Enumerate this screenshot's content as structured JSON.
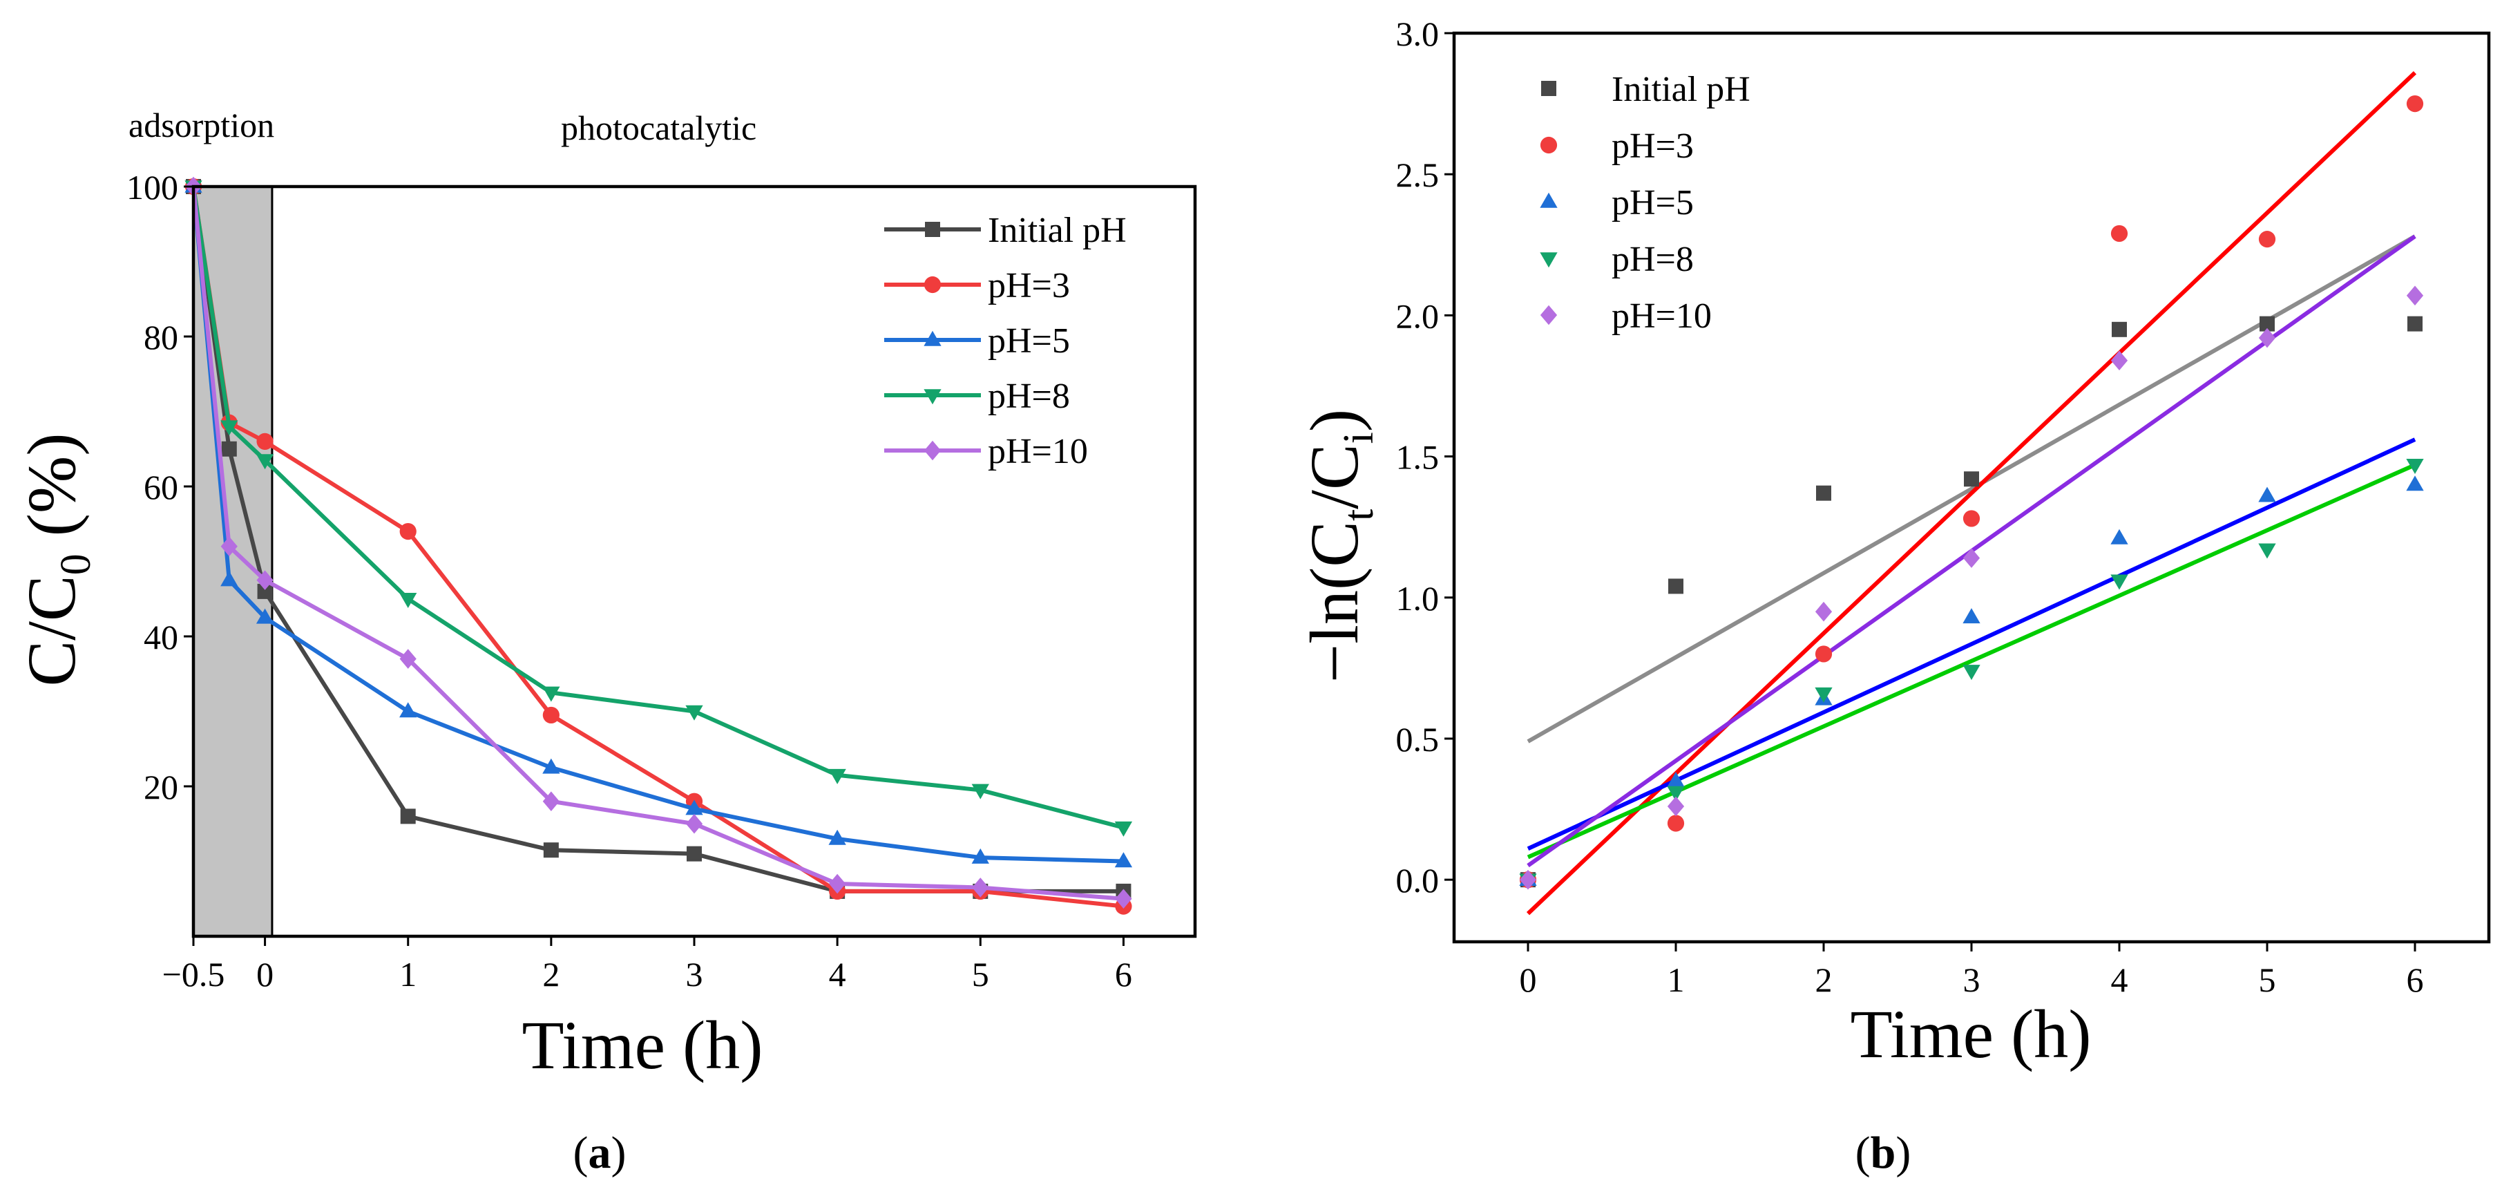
{
  "chart_data": [
    {
      "type": "line",
      "panel_label": "a",
      "xlabel": "Time (h)",
      "ylabel_main": "C/C",
      "ylabel_sub": "0",
      "ylabel_unit": " (%)",
      "xlim": [
        -0.5,
        6.5
      ],
      "ylim": [
        0,
        100
      ],
      "xticks": [
        -0.5,
        0,
        1,
        2,
        3,
        4,
        5,
        6
      ],
      "xtick_labels": [
        "−0.5",
        "0",
        "1",
        "2",
        "3",
        "4",
        "5",
        "6"
      ],
      "yticks": [
        20,
        40,
        60,
        80,
        100
      ],
      "ytick_labels": [
        "20",
        "40",
        "60",
        "80",
        "100"
      ],
      "region_labels": {
        "adsorption": "adsorption",
        "photocatalytic": "photocatalytic"
      },
      "shaded_region": [
        -0.5,
        0.05
      ],
      "legend_position": "top-right",
      "series": [
        {
          "name": "Initial pH",
          "color": "#474747",
          "marker": "square",
          "x": [
            -0.5,
            -0.25,
            0,
            1,
            2,
            3,
            4,
            5,
            6
          ],
          "y": [
            100,
            65,
            46,
            16,
            11.5,
            11,
            6,
            6,
            6
          ]
        },
        {
          "name": "pH=3",
          "color": "#f03c3c",
          "marker": "circle",
          "x": [
            -0.5,
            -0.25,
            0,
            1,
            2,
            3,
            4,
            5,
            6
          ],
          "y": [
            100,
            68.5,
            66,
            54,
            29.5,
            18,
            6,
            6,
            4
          ]
        },
        {
          "name": "pH=5",
          "color": "#1f6fd6",
          "marker": "triangle-up",
          "x": [
            -0.5,
            -0.25,
            0,
            1,
            2,
            3,
            4,
            5,
            6
          ],
          "y": [
            100,
            47.5,
            42.5,
            30,
            22.5,
            17,
            13,
            10.5,
            10
          ]
        },
        {
          "name": "pH=8",
          "color": "#14a36a",
          "marker": "triangle-down",
          "x": [
            -0.5,
            -0.25,
            0,
            1,
            2,
            3,
            4,
            5,
            6
          ],
          "y": [
            100,
            68,
            63.5,
            45,
            32.5,
            30,
            21.5,
            19.5,
            14.5
          ]
        },
        {
          "name": "pH=10",
          "color": "#b56ee0",
          "marker": "diamond",
          "x": [
            -0.5,
            -0.25,
            0,
            1,
            2,
            3,
            4,
            5,
            6
          ],
          "y": [
            100,
            52,
            47.5,
            37,
            18,
            15,
            7,
            6.5,
            5
          ]
        }
      ]
    },
    {
      "type": "scatter",
      "panel_label": "b",
      "xlabel": "Time (h)",
      "ylabel_prefix": "−ln(C",
      "ylabel_sub1": "t",
      "ylabel_mid": "/C",
      "ylabel_sub2": "i",
      "ylabel_suffix": ")",
      "xlim": [
        -0.5,
        6.5
      ],
      "ylim": [
        -0.22,
        3.0
      ],
      "xticks": [
        0,
        1,
        2,
        3,
        4,
        5,
        6
      ],
      "xtick_labels": [
        "0",
        "1",
        "2",
        "3",
        "4",
        "5",
        "6"
      ],
      "yticks": [
        0,
        0.5,
        1.0,
        1.5,
        2.0,
        2.5,
        3.0
      ],
      "ytick_labels": [
        "0.0",
        "0.5",
        "1.0",
        "1.5",
        "2.0",
        "2.5",
        "3.0"
      ],
      "legend_position": "top-left",
      "series": [
        {
          "name": "Initial pH",
          "color": "#474747",
          "marker": "square",
          "fit_color": "#8c8c8c",
          "x": [
            0,
            1,
            2,
            3,
            4,
            5,
            6
          ],
          "y": [
            0,
            1.04,
            1.37,
            1.42,
            1.95,
            1.97,
            1.97
          ],
          "fit": [
            0.49,
            2.28
          ]
        },
        {
          "name": "pH=3",
          "color": "#f03c3c",
          "marker": "circle",
          "fit_color": "#ff0000",
          "x": [
            0,
            1,
            2,
            3,
            4,
            5,
            6
          ],
          "y": [
            0,
            0.2,
            0.8,
            1.28,
            2.29,
            2.27,
            2.75
          ],
          "fit": [
            -0.12,
            2.86
          ]
        },
        {
          "name": "pH=5",
          "color": "#1f6fd6",
          "marker": "triangle-up",
          "fit_color": "#0000ff",
          "x": [
            0,
            1,
            2,
            3,
            4,
            5,
            6
          ],
          "y": [
            0,
            0.35,
            0.64,
            0.93,
            1.21,
            1.36,
            1.4
          ],
          "fit": [
            0.11,
            1.56
          ]
        },
        {
          "name": "pH=8",
          "color": "#14a36a",
          "marker": "triangle-down",
          "fit_color": "#00cc00",
          "x": [
            0,
            1,
            2,
            3,
            4,
            5,
            6
          ],
          "y": [
            0,
            0.31,
            0.66,
            0.74,
            1.06,
            1.17,
            1.47
          ],
          "fit": [
            0.08,
            1.47
          ]
        },
        {
          "name": "pH=10",
          "color": "#b56ee0",
          "marker": "diamond",
          "fit_color": "#8a2be2",
          "x": [
            0,
            1,
            2,
            3,
            4,
            5,
            6
          ],
          "y": [
            0,
            0.26,
            0.95,
            1.14,
            1.84,
            1.92,
            2.07
          ],
          "fit": [
            0.05,
            2.28
          ]
        }
      ]
    }
  ]
}
